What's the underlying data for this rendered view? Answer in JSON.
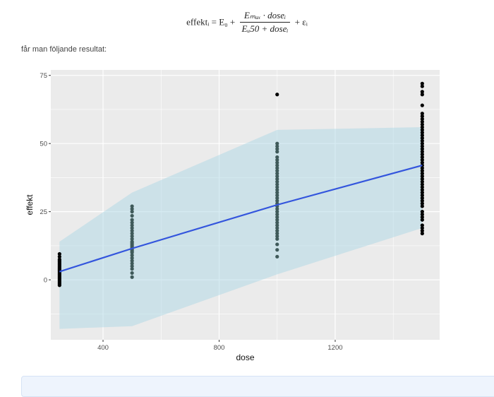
{
  "formula": {
    "lhs": "effektᵢ = E₀ +",
    "numerator": "Eₘₐₓ · doseᵢ",
    "denominator": "Eᵤ50 + doseᵢ",
    "rhs": "+ εᵢ"
  },
  "intro_text": "får man följande resultat:",
  "chart_data": {
    "type": "scatter",
    "xlabel": "dose",
    "ylabel": "effekt",
    "xlim": [
      220,
      1560
    ],
    "ylim": [
      -22,
      77
    ],
    "xticks": [
      400,
      800,
      1200
    ],
    "yticks": [
      0,
      25,
      50,
      75
    ],
    "grid": true,
    "colors": {
      "panel": "#ebebeb",
      "grid": "#ffffff",
      "band": "#add8e6",
      "line": "#3355dd",
      "points_dark": "#000000",
      "points_mid": "#3f5a5a"
    },
    "band": {
      "x": [
        250,
        500,
        1000,
        1500
      ],
      "lower": [
        -18,
        -17,
        2,
        19
      ],
      "upper": [
        14,
        32,
        55,
        56
      ]
    },
    "fit_line": {
      "x": [
        250,
        500,
        1000,
        1500
      ],
      "y": [
        3,
        11.5,
        27.5,
        42
      ]
    },
    "points": [
      {
        "dose": 250,
        "effekt": [
          -2,
          -1.5,
          -1,
          -0.5,
          0,
          0.5,
          1,
          1.5,
          2,
          2.5,
          3,
          3.5,
          4,
          4.5,
          5,
          5.5,
          6,
          6.5,
          7,
          7.5,
          8.5,
          9.5
        ]
      },
      {
        "dose": 500,
        "effekt": [
          1,
          2.5,
          4,
          5,
          6,
          7,
          8,
          9,
          10,
          10.5,
          11,
          11.5,
          12,
          12.5,
          13,
          13.5,
          14,
          15,
          16,
          17,
          18,
          19,
          20,
          21,
          22,
          23.5,
          25,
          26,
          27
        ]
      },
      {
        "dose": 1000,
        "effekt": [
          8.5,
          11,
          13,
          15,
          16,
          17,
          18,
          19,
          20,
          21,
          22,
          23,
          24,
          25,
          26,
          27,
          28,
          29,
          30,
          31,
          32,
          33,
          34,
          35,
          36,
          37,
          38,
          39,
          40,
          41,
          42,
          43,
          44,
          45,
          47,
          48,
          49,
          50,
          68
        ]
      },
      {
        "dose": 1500,
        "effekt": [
          17,
          18,
          19,
          20,
          22,
          23,
          24,
          25,
          27,
          28,
          29,
          30,
          31,
          32,
          33,
          34,
          35,
          36,
          37,
          38,
          39,
          40,
          41,
          42,
          43,
          44,
          45,
          46,
          47,
          48,
          49,
          50,
          51,
          52,
          53,
          54,
          55,
          56,
          57,
          58,
          59,
          60,
          61,
          64,
          68,
          69,
          71,
          72
        ]
      }
    ]
  }
}
